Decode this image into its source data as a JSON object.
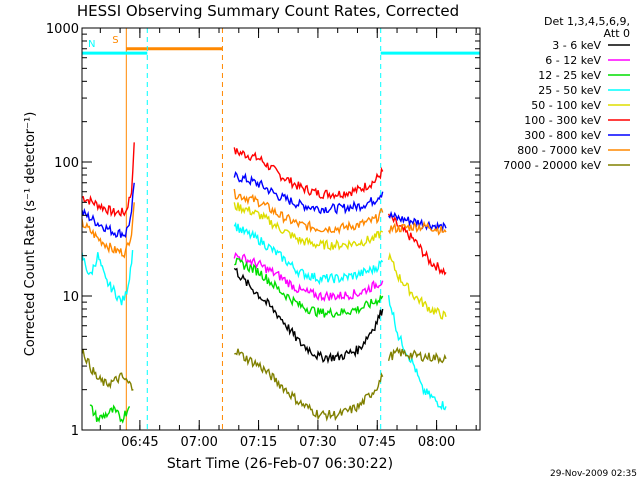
{
  "chart_data": {
    "type": "line",
    "title": "HESSI Observing Summary Count Rates, Corrected",
    "xlabel": "Start Time (26-Feb-07 06:30:22)",
    "ylabel": "Corrected Count Rate (s⁻¹ detector⁻¹)",
    "y_scale": "log",
    "ylim": [
      1,
      1000
    ],
    "xlim_minutes": [
      0,
      100.6
    ],
    "x_ticks": [
      {
        "minutes": 14.63,
        "label": "06:45"
      },
      {
        "minutes": 29.63,
        "label": "07:00"
      },
      {
        "minutes": 44.63,
        "label": "07:15"
      },
      {
        "minutes": 59.63,
        "label": "07:30"
      },
      {
        "minutes": 74.63,
        "label": "07:45"
      },
      {
        "minutes": 89.63,
        "label": "08:00"
      }
    ],
    "y_ticks": [
      {
        "value": 1,
        "label": "1"
      },
      {
        "value": 10,
        "label": "10"
      },
      {
        "value": 100,
        "label": "100"
      },
      {
        "value": 1000,
        "label": "1000"
      }
    ],
    "legend": {
      "header": [
        "Det 1,3,4,5,6,9,",
        "Att 0"
      ],
      "placement": "right",
      "entries": [
        {
          "label": "3 - 6 keV",
          "color": "#000000"
        },
        {
          "label": "6 - 12 keV",
          "color": "#ff00ff"
        },
        {
          "label": "12 - 25 keV",
          "color": "#00dd00"
        },
        {
          "label": "25 - 50 keV",
          "color": "#00ffff"
        },
        {
          "label": "50 - 100 keV",
          "color": "#dddd00"
        },
        {
          "label": "100 - 300 keV",
          "color": "#ff0000"
        },
        {
          "label": "300 - 800 keV",
          "color": "#0000ff"
        },
        {
          "label": "800 - 7000 keV",
          "color": "#ff8800"
        },
        {
          "label": "7000 - 20000 keV",
          "color": "#808000"
        }
      ]
    },
    "annotations": [
      {
        "label": "S",
        "color": "#ff8800",
        "start_minutes": 11.2,
        "end_minutes": 35.5,
        "level": 700
      },
      {
        "label": "N",
        "color": "#00ffff",
        "start_minutes": 0,
        "end_minutes": 16.5,
        "level": 650
      },
      {
        "label": "",
        "color": "#00ffff",
        "start_minutes": 75.5,
        "end_minutes": 100.6,
        "level": 650
      }
    ],
    "series": [
      {
        "color": "#ff0000",
        "segments": [
          {
            "x": [
              0,
              4,
              8,
              11,
              12.5,
              13.2
            ],
            "y": [
              55,
              48,
              42,
              42,
              60,
              140
            ]
          },
          {
            "x": [
              38.5,
              41,
              45,
              50,
              55,
              60,
              65,
              70,
              74,
              76
            ],
            "y": [
              120,
              115,
              105,
              80,
              65,
              58,
              58,
              62,
              72,
              85
            ]
          },
          {
            "x": [
              77.5,
              80,
              84,
              88,
              92
            ],
            "y": [
              40,
              33,
              26,
              18,
              15
            ]
          }
        ]
      },
      {
        "color": "#0000ff",
        "segments": [
          {
            "x": [
              0,
              4,
              8,
              11,
              12.5,
              13.2
            ],
            "y": [
              42,
              35,
              30,
              29,
              40,
              70
            ]
          },
          {
            "x": [
              38.5,
              41,
              45,
              50,
              55,
              60,
              65,
              70,
              74,
              76
            ],
            "y": [
              78,
              75,
              68,
              55,
              48,
              45,
              45,
              47,
              52,
              60
            ]
          },
          {
            "x": [
              77.5,
              80,
              84,
              88,
              92
            ],
            "y": [
              40,
              38,
              36,
              34,
              32
            ]
          }
        ]
      },
      {
        "color": "#ff8800",
        "segments": [
          {
            "x": [
              0,
              4,
              8,
              11,
              12.5,
              13.2
            ],
            "y": [
              35,
              27,
              22,
              21,
              30,
              50
            ]
          },
          {
            "x": [
              38.5,
              41,
              45,
              50,
              55,
              60,
              65,
              70,
              74,
              76
            ],
            "y": [
              58,
              55,
              50,
              40,
              34,
              32,
              32,
              34,
              37,
              42
            ]
          },
          {
            "x": [
              77.5,
              80,
              84,
              88,
              92
            ],
            "y": [
              32,
              32,
              33,
              33,
              30
            ]
          }
        ]
      },
      {
        "color": "#dddd00",
        "segments": [
          {
            "x": [
              38.5,
              41,
              45,
              50,
              55,
              60,
              65,
              70,
              74,
              76
            ],
            "y": [
              47,
              45,
              40,
              32,
              26,
              24,
              24,
              25,
              27,
              30
            ]
          },
          {
            "x": [
              77.5,
              80,
              84,
              88,
              92
            ],
            "y": [
              20,
              14,
              10,
              8,
              7
            ]
          }
        ]
      },
      {
        "color": "#00ffff",
        "segments": [
          {
            "x": [
              0,
              2,
              4,
              6,
              8,
              10,
              11,
              12,
              12.8
            ],
            "y": [
              20,
              14,
              20,
              13,
              11,
              9,
              10,
              14,
              22
            ]
          },
          {
            "x": [
              38.5,
              41,
              45,
              50,
              55,
              60,
              65,
              70,
              74,
              76
            ],
            "y": [
              34,
              30,
              26,
              20,
              15,
              13.5,
              13.5,
              14.5,
              16,
              18
            ]
          },
          {
            "x": [
              77.5,
              80,
              84,
              86,
              88,
              90,
              92
            ],
            "y": [
              10,
              5,
              3,
              2,
              1.8,
              1.6,
              1.5
            ]
          }
        ]
      },
      {
        "color": "#ff00ff",
        "segments": [
          {
            "x": [
              38.5,
              41,
              45,
              50,
              55,
              60,
              65,
              70,
              74,
              76
            ],
            "y": [
              20,
              19,
              17,
              14,
              11,
              10,
              10,
              10.5,
              12,
              13
            ]
          }
        ]
      },
      {
        "color": "#00dd00",
        "segments": [
          {
            "x": [
              38.5,
              41,
              45,
              50,
              55,
              60,
              65,
              70,
              74,
              76
            ],
            "y": [
              18,
              17,
              15,
              11,
              8.5,
              7.5,
              7.5,
              8,
              9,
              10
            ]
          }
        ]
      },
      {
        "color": "#000000",
        "segments": [
          {
            "x": [
              38.5,
              41,
              45,
              50,
              55,
              60,
              65,
              70,
              74,
              76
            ],
            "y": [
              16,
              13,
              10,
              7,
              4.5,
              3.5,
              3.5,
              4,
              6,
              8
            ]
          }
        ]
      },
      {
        "color": "#808000",
        "segments": [
          {
            "x": [
              0,
              2,
              4,
              6,
              8,
              10,
              12,
              13
            ],
            "y": [
              4,
              3,
              2.4,
              2.2,
              2.3,
              2.5,
              2.2,
              2
            ]
          },
          {
            "x": [
              38.5,
              41,
              45,
              50,
              55,
              60,
              65,
              70,
              74,
              76
            ],
            "y": [
              4,
              3.5,
              3,
              2.2,
              1.6,
              1.3,
              1.3,
              1.5,
              2,
              2.5
            ]
          },
          {
            "x": [
              77.5,
              80,
              84,
              88,
              92
            ],
            "y": [
              3.5,
              3.8,
              3.6,
              3.5,
              3.4
            ]
          }
        ]
      },
      {
        "color": "#00dd00",
        "segments": [
          {
            "x": [
              2,
              4,
              6,
              8,
              10,
              12
            ],
            "y": [
              1.5,
              1.2,
              1.3,
              1.4,
              1.2,
              1.5
            ]
          }
        ]
      }
    ]
  },
  "footer": {
    "timestamp": "29-Nov-2009 02:35"
  }
}
